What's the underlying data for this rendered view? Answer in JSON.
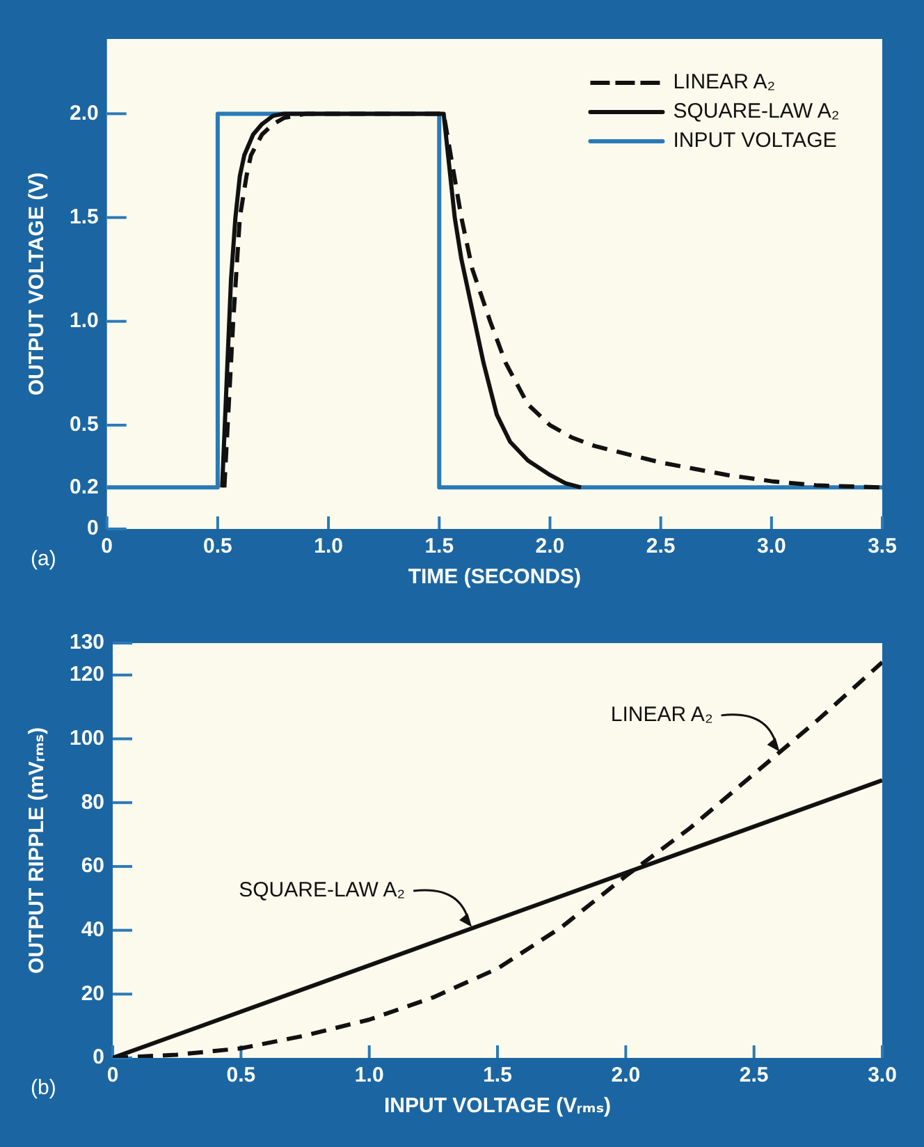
{
  "chart_data": [
    {
      "type": "line",
      "xlabel": "TIME (SECONDS)",
      "ylabel": "OUTPUT VOLTAGE (V)",
      "xlim": [
        0,
        3.5
      ],
      "ylim": [
        0,
        2.36
      ],
      "xticks": [
        0,
        0.5,
        {
          "value": 1,
          "label": "1.0"
        },
        1.5,
        {
          "value": 2,
          "label": "2.0"
        },
        2.5,
        {
          "value": 3,
          "label": "3.0"
        },
        3.5
      ],
      "yticks": [
        0,
        0.2,
        0.5,
        {
          "value": 1,
          "label": "1.0"
        },
        1.5,
        {
          "value": 2,
          "label": "2.0"
        }
      ],
      "legend": "top right",
      "annotations": [
        "(a)"
      ],
      "series": [
        {
          "name": "LINEAR A₂",
          "color": "#111111",
          "line_style": "dashed",
          "x": [
            0.53,
            0.55,
            0.57,
            0.6,
            0.63,
            0.65,
            0.7,
            0.75,
            0.8,
            0.9,
            1.0,
            1.52,
            1.56,
            1.6,
            1.65,
            1.73,
            1.8,
            1.9,
            2.0,
            2.1,
            2.2,
            2.35,
            2.5,
            2.65,
            2.8,
            3.0,
            3.2,
            3.5
          ],
          "values": [
            0.2,
            0.6,
            1.0,
            1.5,
            1.7,
            1.8,
            1.9,
            1.95,
            1.98,
            2.0,
            2.0,
            2.0,
            1.75,
            1.5,
            1.25,
            1.0,
            0.8,
            0.6,
            0.5,
            0.44,
            0.4,
            0.36,
            0.32,
            0.29,
            0.26,
            0.23,
            0.21,
            0.2
          ]
        },
        {
          "name": "SQUARE-LAW A₂",
          "color": "#111111",
          "line_style": "solid",
          "x": [
            0.52,
            0.54,
            0.56,
            0.58,
            0.6,
            0.62,
            0.66,
            0.7,
            0.75,
            0.8,
            1.52,
            1.54,
            1.57,
            1.6,
            1.63,
            1.66,
            1.7,
            1.76,
            1.82,
            1.9,
            2.0,
            2.07,
            2.14
          ],
          "values": [
            0.2,
            0.7,
            1.2,
            1.5,
            1.7,
            1.8,
            1.9,
            1.95,
            1.99,
            2.0,
            2.0,
            1.8,
            1.5,
            1.3,
            1.15,
            1.0,
            0.8,
            0.55,
            0.42,
            0.33,
            0.26,
            0.22,
            0.2
          ]
        },
        {
          "name": "INPUT VOLTAGE",
          "color": "#2a7ab8",
          "line_style": "solid",
          "x": [
            0,
            0.5,
            0.5,
            1.5,
            1.5,
            3.5
          ],
          "values": [
            0.2,
            0.2,
            2.0,
            2.0,
            0.2,
            0.2
          ]
        }
      ]
    },
    {
      "type": "line",
      "xlabel": "INPUT VOLTAGE (Vᵣₘₛ)",
      "ylabel": "OUTPUT RIPPLE (mVᵣₘₛ)",
      "xlim": [
        0,
        3.0
      ],
      "ylim": [
        0,
        130
      ],
      "xticks": [
        0,
        0.5,
        {
          "value": 1,
          "label": "1.0"
        },
        1.5,
        {
          "value": 2,
          "label": "2.0"
        },
        2.5,
        {
          "value": 3,
          "label": "3.0"
        }
      ],
      "yticks": [
        0,
        20,
        40,
        60,
        80,
        100,
        120,
        130
      ],
      "annotations": [
        {
          "text": "LINEAR A₂",
          "x": 2.6,
          "y": 96
        },
        {
          "text": "SQUARE-LAW A₂",
          "x": 1.4,
          "y": 41
        },
        "(b)"
      ],
      "series": [
        {
          "color": "#111111",
          "line_style": "dashed",
          "x": [
            0,
            0.25,
            0.5,
            0.75,
            1.0,
            1.25,
            1.5,
            1.75,
            2.0,
            2.25,
            2.5,
            2.75,
            3.0
          ],
          "values": [
            0,
            1,
            3,
            7,
            12,
            19,
            28,
            41,
            57,
            72,
            89,
            106,
            124
          ]
        },
        {
          "color": "#111111",
          "line_style": "solid",
          "x": [
            0,
            3.0
          ],
          "values": [
            0,
            87
          ]
        }
      ]
    }
  ]
}
